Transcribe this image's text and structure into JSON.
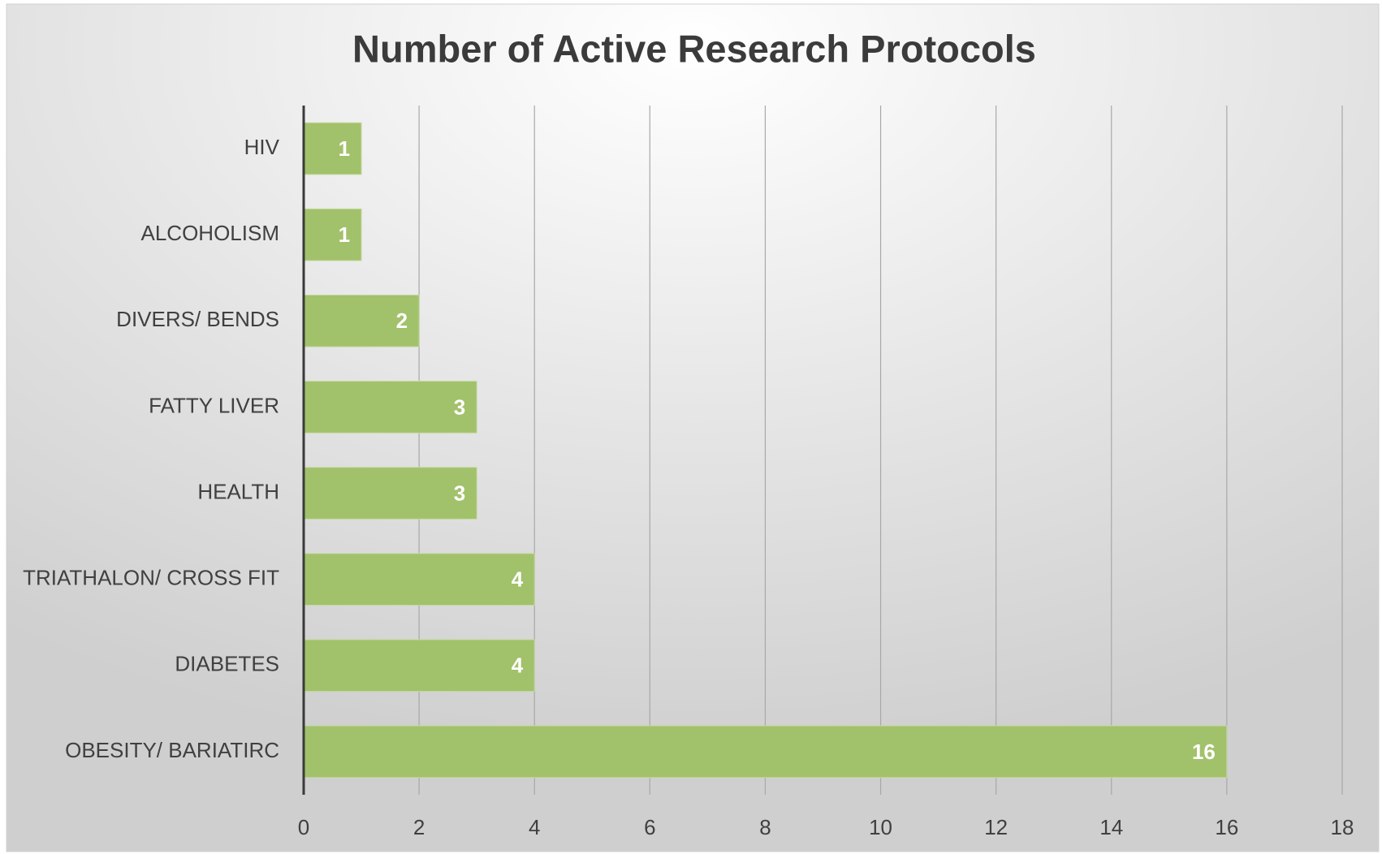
{
  "chart_data": {
    "type": "bar",
    "orientation": "horizontal",
    "title": "Number of Active Research Protocols",
    "categories": [
      "HIV",
      "ALCOHOLISM",
      "DIVERS/ BENDS",
      "FATTY LIVER",
      "HEALTH",
      "TRIATHALON/ CROSS FIT",
      "DIABETES",
      "OBESITY/ BARIATIRC"
    ],
    "values": [
      1,
      1,
      2,
      3,
      3,
      4,
      4,
      16
    ],
    "color": "#a2c16b",
    "xlim": [
      0,
      18
    ],
    "xticks": [
      0,
      2,
      4,
      6,
      8,
      10,
      12,
      14,
      16,
      18
    ],
    "grid": true
  }
}
